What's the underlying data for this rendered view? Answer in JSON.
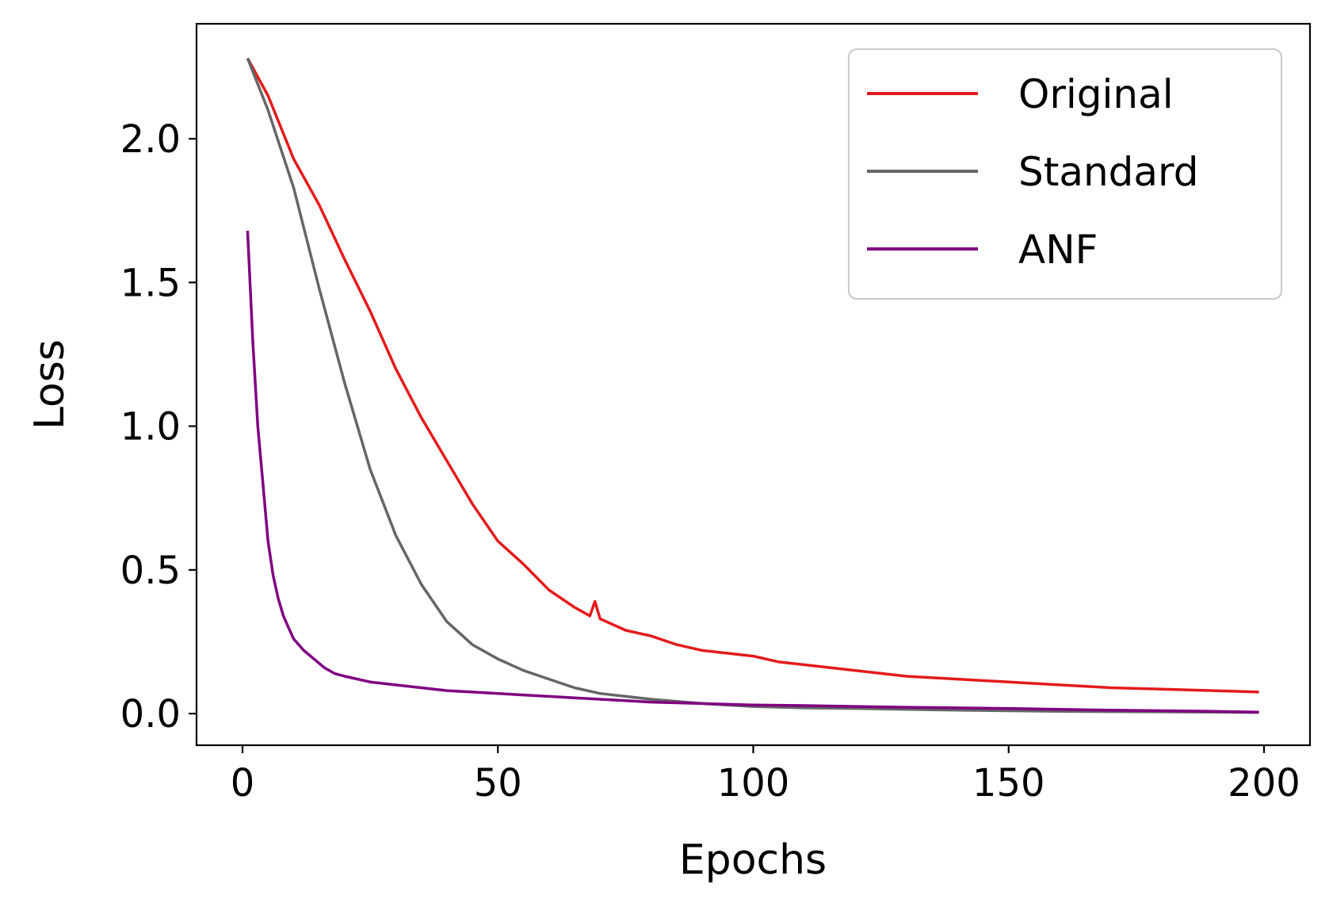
{
  "chart_data": {
    "type": "line",
    "title": "",
    "xlabel": "Epochs",
    "ylabel": "Loss",
    "xlim": [
      -9,
      209
    ],
    "ylim": [
      -0.11,
      2.4
    ],
    "xticks": [
      0,
      50,
      100,
      150,
      200
    ],
    "xtick_labels": [
      "0",
      "50",
      "100",
      "150",
      "200"
    ],
    "yticks": [
      0.0,
      0.5,
      1.0,
      1.5,
      2.0
    ],
    "ytick_labels": [
      "0.0",
      "0.5",
      "1.0",
      "1.5",
      "2.0"
    ],
    "grid": false,
    "legend_position": "top-right",
    "series": [
      {
        "name": "Original",
        "color": "#e31a1c",
        "x": [
          1,
          5,
          10,
          15,
          20,
          25,
          30,
          35,
          40,
          45,
          50,
          55,
          60,
          65,
          68,
          69,
          70,
          75,
          80,
          85,
          90,
          95,
          100,
          105,
          110,
          120,
          130,
          140,
          150,
          160,
          170,
          180,
          190,
          199
        ],
        "y": [
          2.28,
          2.15,
          1.93,
          1.77,
          1.58,
          1.4,
          1.2,
          1.03,
          0.88,
          0.73,
          0.6,
          0.52,
          0.43,
          0.37,
          0.34,
          0.39,
          0.33,
          0.29,
          0.27,
          0.24,
          0.22,
          0.21,
          0.2,
          0.18,
          0.17,
          0.15,
          0.13,
          0.12,
          0.11,
          0.1,
          0.09,
          0.085,
          0.08,
          0.075
        ]
      },
      {
        "name": "Standard",
        "color": "#666666",
        "x": [
          1,
          5,
          10,
          15,
          20,
          25,
          30,
          35,
          40,
          45,
          50,
          55,
          60,
          65,
          70,
          80,
          90,
          100,
          110,
          120,
          130,
          140,
          150,
          160,
          170,
          180,
          190,
          199
        ],
        "y": [
          2.28,
          2.1,
          1.83,
          1.48,
          1.15,
          0.85,
          0.62,
          0.45,
          0.32,
          0.24,
          0.19,
          0.15,
          0.12,
          0.09,
          0.07,
          0.05,
          0.035,
          0.025,
          0.02,
          0.018,
          0.015,
          0.012,
          0.01,
          0.008,
          0.007,
          0.006,
          0.005,
          0.004
        ]
      },
      {
        "name": "ANF",
        "color": "#800080",
        "x": [
          1,
          2,
          3,
          4,
          5,
          6,
          7,
          8,
          9,
          10,
          12,
          14,
          16,
          18,
          20,
          25,
          30,
          35,
          40,
          45,
          50,
          55,
          60,
          65,
          70,
          75,
          80,
          90,
          100,
          110,
          120,
          130,
          140,
          150,
          160,
          170,
          180,
          190,
          199
        ],
        "y": [
          1.68,
          1.3,
          1.0,
          0.8,
          0.6,
          0.48,
          0.4,
          0.34,
          0.3,
          0.26,
          0.22,
          0.19,
          0.16,
          0.14,
          0.13,
          0.11,
          0.1,
          0.09,
          0.08,
          0.075,
          0.07,
          0.065,
          0.06,
          0.055,
          0.05,
          0.045,
          0.04,
          0.035,
          0.03,
          0.028,
          0.025,
          0.022,
          0.02,
          0.018,
          0.015,
          0.012,
          0.01,
          0.008,
          0.005
        ]
      }
    ]
  }
}
